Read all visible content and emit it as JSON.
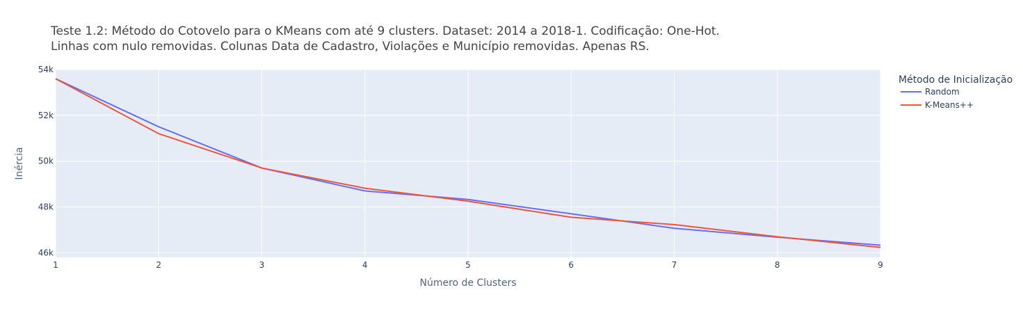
{
  "chart_data": {
    "type": "line",
    "title_lines": [
      "Teste 1.2: Método do Cotovelo para o KMeans com até 9 clusters. Dataset: 2014 a 2018-1. Codificação: One-Hot.",
      "Linhas com nulo removidas. Colunas Data de Cadastro, Violações e Município removidas. Apenas RS."
    ],
    "xlabel": "Número de Clusters",
    "ylabel": "Inércia",
    "x": [
      1,
      2,
      3,
      4,
      5,
      6,
      7,
      8,
      9
    ],
    "xlim": [
      1,
      9
    ],
    "ylim": [
      45800,
      54000
    ],
    "y_ticks": [
      46000,
      48000,
      50000,
      52000,
      54000
    ],
    "y_tick_labels": [
      "46k",
      "48k",
      "50k",
      "52k",
      "54k"
    ],
    "x_tick_labels": [
      "1",
      "2",
      "3",
      "4",
      "5",
      "6",
      "7",
      "8",
      "9"
    ],
    "grid": true,
    "legend": {
      "title": "Método de Inicialização",
      "placement": "right"
    },
    "series": [
      {
        "name": "Random",
        "color": "#636efa",
        "values": [
          53600,
          51500,
          49700,
          48700,
          48330,
          47700,
          47070,
          46680,
          46330
        ]
      },
      {
        "name": "K-Means++",
        "color": "#ef553b",
        "values": [
          53600,
          51200,
          49700,
          48820,
          48250,
          47550,
          47230,
          46700,
          46230
        ]
      }
    ]
  }
}
